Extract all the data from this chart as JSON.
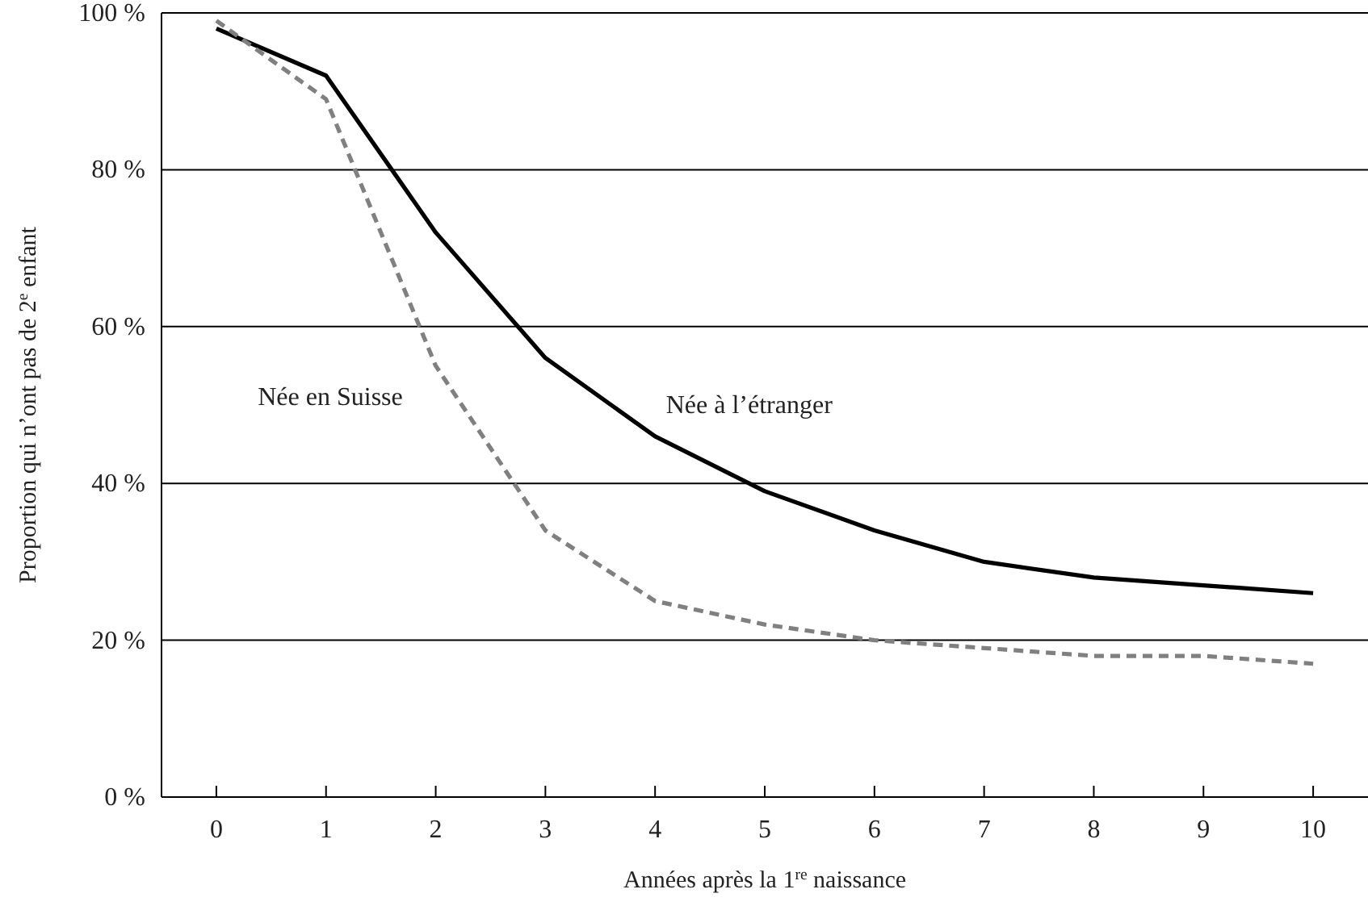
{
  "chart_data": {
    "type": "line",
    "xlabel": "Années après la 1$^{re}$ naissance",
    "ylabel": "Proportion qui n’ont pas de 2$^{e}$ enfant",
    "x": [
      0,
      1,
      2,
      3,
      4,
      5,
      6,
      7,
      8,
      9,
      10
    ],
    "series": [
      {
        "name": "Née à l’étranger",
        "color": "#000000",
        "line_style": "solid",
        "values": [
          98,
          92,
          72,
          56,
          46,
          39,
          34,
          30,
          28,
          27,
          26
        ]
      },
      {
        "name": "Née en Suisse",
        "color": "#808080",
        "line_style": "dashed",
        "values": [
          99,
          89,
          55,
          34,
          25,
          22,
          20,
          19,
          18,
          18,
          17
        ]
      }
    ],
    "xlim": [
      -0.5,
      10.5
    ],
    "xticks": [
      0,
      1,
      2,
      3,
      4,
      5,
      6,
      7,
      8,
      9,
      10
    ],
    "ylim": [
      0,
      100
    ],
    "yticks": [
      {
        "value": 0,
        "label": "0 %"
      },
      {
        "value": 20,
        "label": "20 %"
      },
      {
        "value": 40,
        "label": "40 %"
      },
      {
        "value": 60,
        "label": "60 %"
      },
      {
        "value": 80,
        "label": "80 %"
      },
      {
        "value": 100,
        "label": "100 %"
      }
    ],
    "grid": "y",
    "marker": "none"
  }
}
